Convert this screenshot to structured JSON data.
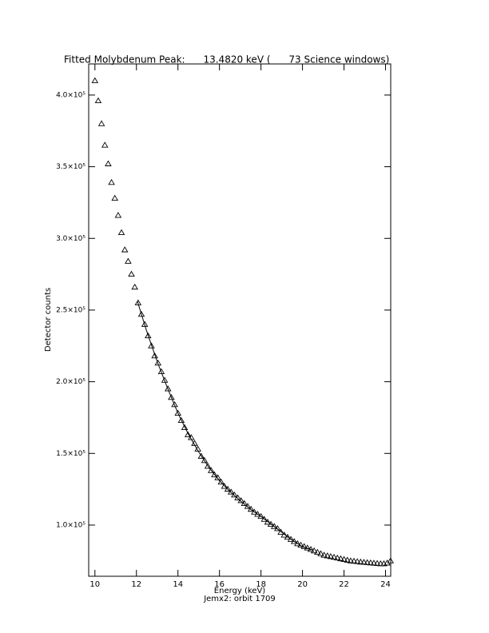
{
  "chart_data": {
    "type": "scatter",
    "title": "Fitted Molybdenum Peak:      13.4820 keV (      73 Science windows)",
    "x_label": "Energy (keV)",
    "y_label": "Detector counts",
    "note": "Jemx2: orbit 1709",
    "xlim": [
      9.7,
      24.25
    ],
    "ylim": [
      64300,
      421700
    ],
    "xticks": [
      10,
      12,
      14,
      16,
      18,
      20,
      22,
      24
    ],
    "yticks": [
      {
        "value": 100000,
        "label": "1.0×10⁵"
      },
      {
        "value": 150000,
        "label": "1.5×10⁵"
      },
      {
        "value": 200000,
        "label": "2.0×10⁵"
      },
      {
        "value": 250000,
        "label": "2.5×10⁵"
      },
      {
        "value": 300000,
        "label": "3.0×10⁵"
      },
      {
        "value": 350000,
        "label": "3.5×10⁵"
      },
      {
        "value": 400000,
        "label": "4.0×10⁵"
      }
    ],
    "color": "#000000",
    "series": [
      {
        "marker": "triangle",
        "x": [
          10.0,
          10.16,
          10.32,
          10.48,
          10.64,
          10.8,
          10.96,
          11.12,
          11.28,
          11.44,
          11.6,
          11.76,
          11.92,
          12.08,
          12.24,
          12.4,
          12.56,
          12.72,
          12.88,
          13.04,
          13.2,
          13.36,
          13.52,
          13.68,
          13.84,
          14.0,
          14.16,
          14.32,
          14.48,
          14.64,
          14.8,
          14.96,
          15.12,
          15.28,
          15.44,
          15.6,
          15.76,
          15.92,
          16.08,
          16.24,
          16.4,
          16.56,
          16.72,
          16.88,
          17.04,
          17.2,
          17.36,
          17.52,
          17.68,
          17.84,
          18.0,
          18.16,
          18.32,
          18.48,
          18.64,
          18.8,
          18.96,
          19.12,
          19.28,
          19.44,
          19.6,
          19.76,
          19.92,
          20.08,
          20.24,
          20.4,
          20.56,
          20.72,
          20.88,
          21.04,
          21.2,
          21.36,
          21.52,
          21.68,
          21.84,
          22.0,
          22.16,
          22.32,
          22.48,
          22.64,
          22.8,
          22.96,
          23.12,
          23.28,
          23.44,
          23.6,
          23.76,
          23.92,
          24.08,
          24.24
        ],
        "values": [
          410000,
          396000,
          380000,
          365000,
          352000,
          339000,
          328000,
          316000,
          304000,
          292000,
          284000,
          275000,
          266000,
          255000,
          247000,
          240000,
          232000,
          225000,
          218000,
          213000,
          207000,
          201000,
          195000,
          189000,
          184000,
          178000,
          173000,
          168000,
          163000,
          161000,
          157000,
          153000,
          148000,
          145000,
          141000,
          138000,
          135000,
          133000,
          130000,
          127000,
          125000,
          123000,
          121000,
          119000,
          117000,
          115000,
          113000,
          111000,
          109000,
          107500,
          106000,
          104000,
          102000,
          100500,
          99000,
          97500,
          95000,
          93000,
          91500,
          90000,
          88500,
          87000,
          86000,
          85000,
          84000,
          83000,
          82000,
          81000,
          80000,
          79000,
          78500,
          78000,
          77500,
          77000,
          76500,
          76000,
          75500,
          75000,
          74800,
          74500,
          74200,
          74000,
          73800,
          73600,
          73400,
          73200,
          73000,
          73000,
          73500,
          75000
        ]
      },
      {
        "marker": "line",
        "x": [
          12.05,
          12.5,
          13.0,
          13.5,
          14.0,
          14.5,
          15.0,
          15.5,
          16.0,
          16.5,
          17.0,
          17.5,
          18.0,
          18.5,
          19.0,
          19.5,
          20.0,
          20.5
        ],
        "values": [
          256000,
          235000,
          214000,
          195500,
          178000,
          163500,
          151000,
          140000,
          131000,
          123500,
          117000,
          111000,
          106000,
          100500,
          95000,
          89500,
          85000,
          82500
        ]
      }
    ]
  }
}
